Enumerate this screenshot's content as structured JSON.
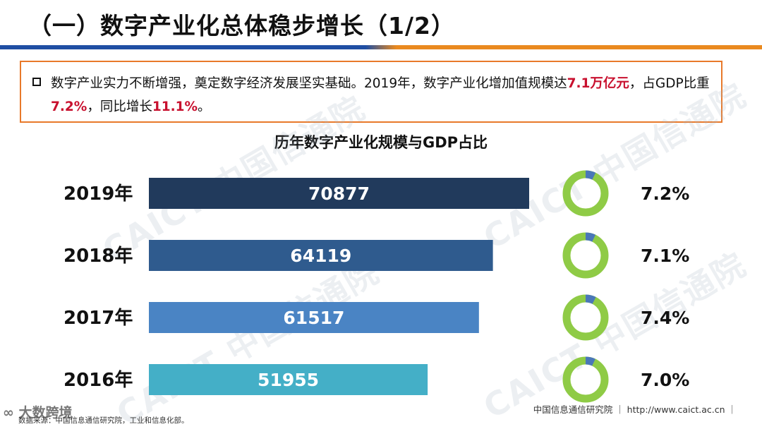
{
  "slide": {
    "title": "（一）数字产业化总体稳步增长（1/2）"
  },
  "summary": {
    "part1": "数字产业实力不断增强，奠定数字经济发展坚实基础。2019年，数字产业化增加值规模达",
    "value_scale": "7.1万亿元",
    "part2": "，占GDP比重",
    "value_share": "7.2%",
    "part3": "，同比增长",
    "value_growth": "11.1%",
    "part4": "。"
  },
  "watermark": [
    "CAICT 中国信通院",
    "CAICT 中国信通院",
    "CAICT 中国信通院",
    "CAICT 中国信通院"
  ],
  "footer": {
    "org": "中国信息通信研究院  ｜  http://www.caict.ac.cn  ｜",
    "source": "数据来源：中国信息通信研究院，工业和信息化部。",
    "logo": "∞ 大数跨境"
  },
  "chart_data": {
    "type": "bar",
    "orientation": "horizontal",
    "title": "历年数字产业化规模与GDP占比",
    "categories": [
      "2019年",
      "2018年",
      "2017年",
      "2016年"
    ],
    "series": [
      {
        "values": [
          70877,
          64119,
          61517,
          51955
        ]
      }
    ],
    "gdp_share": {
      "labels": [
        "7.2%",
        "7.1%",
        "7.4%",
        "7.0%"
      ],
      "values": [
        7.2,
        7.1,
        7.4,
        7.0
      ]
    },
    "colors": {
      "bars": [
        "#213a5c",
        "#2f5b8e",
        "#4a84c4",
        "#44afc7"
      ],
      "donut_main": "#8fcb46",
      "donut_share": "#4a77b8"
    },
    "xlim": [
      0,
      80000
    ],
    "grid": false,
    "legend": "none"
  }
}
